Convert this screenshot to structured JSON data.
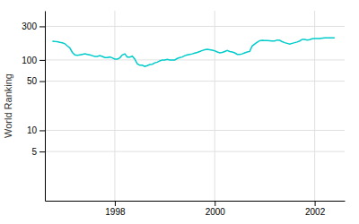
{
  "chart_data": {
    "type": "line",
    "ylabel": "World Ranking",
    "color": "#00cccc",
    "log": "y",
    "grid": true,
    "xlim": [
      1996.6,
      2002.6
    ],
    "xticks": [
      1998,
      2000,
      2002
    ],
    "ylim": [
      1.0,
      500
    ],
    "yticks": [
      5,
      10,
      50,
      100,
      300
    ],
    "x": [
      1996.75,
      1996.8,
      1996.85,
      1996.9,
      1996.95,
      1997.0,
      1997.05,
      1997.1,
      1997.15,
      1997.2,
      1997.25,
      1997.3,
      1997.35,
      1997.4,
      1997.45,
      1997.5,
      1997.55,
      1997.6,
      1997.65,
      1997.7,
      1997.75,
      1997.8,
      1997.85,
      1997.9,
      1997.95,
      1998.0,
      1998.05,
      1998.1,
      1998.15,
      1998.2,
      1998.25,
      1998.3,
      1998.35,
      1998.4,
      1998.45,
      1998.5,
      1998.55,
      1998.6,
      1998.65,
      1998.7,
      1998.75,
      1998.8,
      1998.85,
      1998.9,
      1998.95,
      1999.0,
      1999.05,
      1999.1,
      1999.15,
      1999.2,
      1999.25,
      1999.3,
      1999.35,
      1999.4,
      1999.45,
      1999.5,
      1999.55,
      1999.6,
      1999.65,
      1999.7,
      1999.75,
      1999.8,
      1999.85,
      1999.9,
      1999.95,
      2000.0,
      2000.05,
      2000.1,
      2000.15,
      2000.2,
      2000.25,
      2000.3,
      2000.35,
      2000.4,
      2000.45,
      2000.5,
      2000.55,
      2000.6,
      2000.65,
      2000.7,
      2000.75,
      2000.8,
      2000.85,
      2000.9,
      2000.95,
      2001.0,
      2001.05,
      2001.1,
      2001.15,
      2001.2,
      2001.25,
      2001.3,
      2001.35,
      2001.4,
      2001.45,
      2001.5,
      2001.55,
      2001.6,
      2001.65,
      2001.7,
      2001.75,
      2001.8,
      2001.85,
      2001.9,
      2001.95,
      2002.0,
      2002.1,
      2002.2,
      2002.3,
      2002.4
    ],
    "values": [
      185,
      183,
      182,
      178,
      175,
      170,
      158,
      148,
      128,
      118,
      116,
      118,
      120,
      122,
      120,
      118,
      115,
      112,
      112,
      115,
      112,
      108,
      108,
      110,
      107,
      103,
      103,
      107,
      118,
      122,
      110,
      110,
      113,
      103,
      88,
      84,
      84,
      81,
      83,
      86,
      87,
      91,
      93,
      97,
      100,
      100,
      102,
      100,
      100,
      100,
      105,
      108,
      110,
      115,
      118,
      120,
      122,
      125,
      128,
      132,
      136,
      140,
      142,
      140,
      138,
      135,
      130,
      126,
      128,
      132,
      136,
      132,
      130,
      126,
      120,
      120,
      122,
      126,
      130,
      132,
      158,
      168,
      178,
      188,
      190,
      188,
      188,
      187,
      186,
      186,
      192,
      190,
      182,
      176,
      172,
      168,
      172,
      176,
      180,
      186,
      196,
      196,
      192,
      194,
      200,
      202,
      202,
      206,
      206,
      206
    ]
  }
}
